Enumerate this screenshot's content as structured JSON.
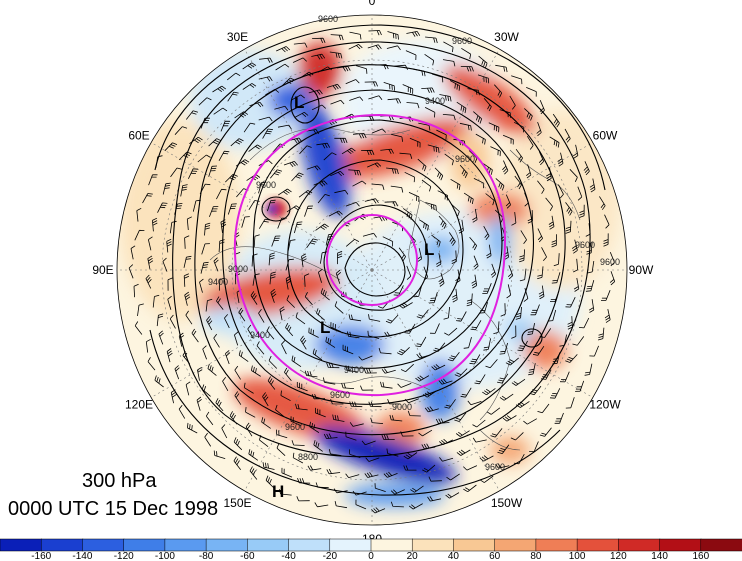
{
  "map": {
    "level_label": "300 hPa",
    "time_label": "0000 UTC 15 Dec 1998",
    "longitude_labels": [
      {
        "text": "0",
        "lon": 0
      },
      {
        "text": "30W",
        "lon": -30
      },
      {
        "text": "60W",
        "lon": -60
      },
      {
        "text": "90W",
        "lon": -90
      },
      {
        "text": "120W",
        "lon": -120
      },
      {
        "text": "150W",
        "lon": -150
      },
      {
        "text": "180",
        "lon": 180
      },
      {
        "text": "150E",
        "lon": 150
      },
      {
        "text": "120E",
        "lon": 120
      },
      {
        "text": "90E",
        "lon": 90
      },
      {
        "text": "60E",
        "lon": 60
      },
      {
        "text": "30E",
        "lon": 30
      }
    ],
    "contour_labels": [
      "9600",
      "9600",
      "9400",
      "9600",
      "9600",
      "9400",
      "9000",
      "9400",
      "9600",
      "9000",
      "9600",
      "9400",
      "9600",
      "8800",
      "9600",
      "9600"
    ],
    "pressure_centers": [
      "L",
      "L",
      "L",
      "H"
    ],
    "colors": {
      "magenta_circle": "#e020e0",
      "contour": "#000000",
      "coast": "#555555"
    }
  },
  "colorbar": {
    "tick_labels": [
      "-160",
      "-140",
      "-120",
      "-100",
      "-80",
      "-60",
      "-40",
      "-20",
      "0",
      "20",
      "40",
      "60",
      "80",
      "100",
      "120",
      "140",
      "160"
    ],
    "colors": [
      "#0a1fb8",
      "#1a3fd0",
      "#2c5fe0",
      "#3f7ee8",
      "#5a9af0",
      "#78b4f4",
      "#98cbf7",
      "#bfe0fa",
      "#e4f3fd",
      "#fdf5e0",
      "#fbe2bb",
      "#f8c894",
      "#f4a673",
      "#ef7e56",
      "#e4513b",
      "#d02a26",
      "#b30f16",
      "#8b0a10"
    ]
  }
}
